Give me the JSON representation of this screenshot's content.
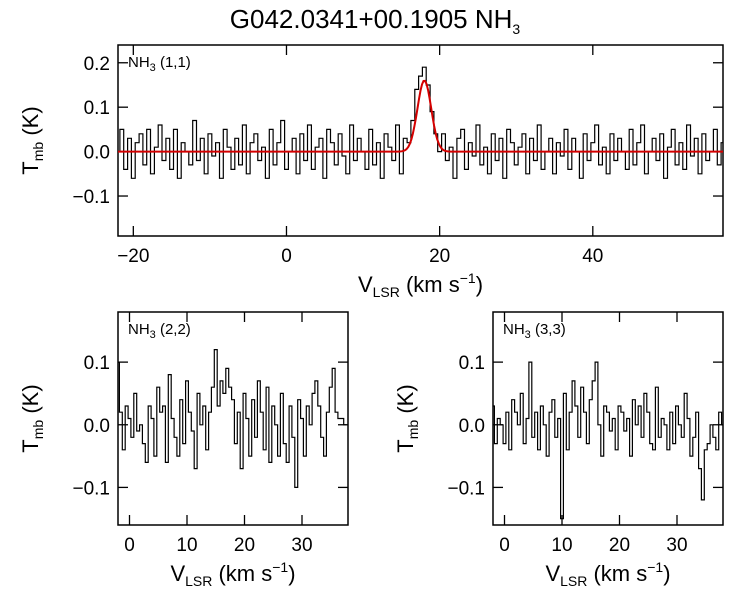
{
  "title": "G042.0341+00.1905 NH",
  "title_sub": "3",
  "chart_data": [
    {
      "type": "line",
      "panel": "top",
      "label_main": "NH",
      "label_sub": "3",
      "label_rest": " (1,1)",
      "xlabel_main": "V",
      "xlabel_sub": "LSR",
      "xlabel_rest": " (km s",
      "xlabel_sup": "−1",
      "xlabel_close": ")",
      "ylabel_main": "T",
      "ylabel_sub": "mb",
      "ylabel_rest": " (K)",
      "xlim": [
        -22,
        57
      ],
      "ylim": [
        -0.19,
        0.24
      ],
      "xticks": [
        -20,
        0,
        20,
        40
      ],
      "xtick_labels": [
        "−20",
        "0",
        "20",
        "40"
      ],
      "yticks": [
        0.2,
        0.1,
        0.0,
        -0.1
      ],
      "ytick_labels": [
        "0.2",
        "0.1",
        "0.0",
        "−0.1"
      ],
      "x_start": -22,
      "x_step": 0.5,
      "series": [
        {
          "kind": "spectrum",
          "values": [
            0.0,
            0.05,
            -0.04,
            0.03,
            -0.06,
            0.02,
            0.04,
            -0.03,
            0.05,
            -0.05,
            0.01,
            0.06,
            -0.02,
            0.03,
            -0.04,
            0.05,
            -0.06,
            0.02,
            0.0,
            -0.03,
            0.07,
            -0.02,
            0.03,
            -0.05,
            0.04,
            -0.01,
            0.02,
            -0.06,
            0.05,
            0.01,
            -0.04,
            0.03,
            -0.03,
            0.06,
            -0.05,
            0.02,
            0.04,
            -0.02,
            0.01,
            -0.06,
            0.05,
            -0.03,
            0.02,
            0.07,
            -0.04,
            0.0,
            0.03,
            -0.05,
            0.04,
            -0.02,
            0.06,
            -0.04,
            0.01,
            0.03,
            -0.06,
            0.05,
            0.02,
            -0.03,
            0.04,
            -0.01,
            -0.05,
            0.06,
            -0.02,
            0.03,
            0.0,
            -0.04,
            0.05,
            -0.03,
            0.02,
            -0.06,
            0.04,
            0.01,
            -0.02,
            0.06,
            -0.05,
            0.03,
            -0.01,
            0.02,
            -0.04,
            0.05,
            0.0,
            -0.03,
            0.07,
            -0.05,
            0.02,
            0.04,
            -0.02,
            0.01,
            -0.06,
            0.03,
            0.05,
            -0.04,
            0.02,
            -0.01,
            0.06,
            -0.03,
            0.01,
            -0.05,
            0.04,
            -0.02,
            0.03,
            -0.06,
            0.05,
            0.02,
            -0.03,
            0.01,
            0.04,
            -0.05,
            0.03,
            -0.02,
            0.06,
            -0.04,
            0.0,
            0.03,
            -0.05,
            0.02,
            -0.01,
            0.05,
            -0.04,
            0.03,
            0.0,
            -0.06,
            0.04,
            -0.02,
            0.02,
            0.06,
            -0.03,
            0.01,
            -0.05,
            0.04,
            -0.02,
            0.03,
            0.0,
            -0.04,
            0.05,
            -0.03,
            0.02,
            0.06,
            -0.05,
            0.0,
            0.03,
            -0.02,
            0.04,
            -0.06,
            0.01,
            0.05,
            -0.03,
            0.02,
            -0.04,
            0.06,
            -0.01,
            0.03,
            -0.05,
            0.04,
            -0.02,
            0.0,
            0.05,
            -0.03,
            0.02
          ],
          "peak": {
            "x": [
              16.0,
              16.5,
              17.0,
              17.5,
              18.0,
              18.5,
              19.0,
              19.5,
              20.0
            ],
            "y": [
              0.02,
              0.07,
              0.14,
              0.17,
              0.19,
              0.15,
              0.09,
              0.04,
              0.0
            ]
          }
        },
        {
          "kind": "fit",
          "color": "#d40000",
          "amplitude": 0.16,
          "center": 18.0,
          "sigma": 0.9
        }
      ]
    },
    {
      "type": "line",
      "panel": "bottom-left",
      "label_main": "NH",
      "label_sub": "3",
      "label_rest": " (2,2)",
      "xlabel_main": "V",
      "xlabel_sub": "LSR",
      "xlabel_rest": " (km s",
      "xlabel_sup": "−1",
      "xlabel_close": ")",
      "ylabel_main": "T",
      "ylabel_sub": "mb",
      "ylabel_rest": " (K)",
      "xlim": [
        -2,
        38
      ],
      "ylim": [
        -0.16,
        0.18
      ],
      "xticks": [
        0,
        10,
        20,
        30
      ],
      "xtick_labels": [
        "0",
        "10",
        "20",
        "30"
      ],
      "yticks": [
        0.1,
        0.0,
        -0.1
      ],
      "ytick_labels": [
        "0.1",
        "0.0",
        "−0.1"
      ],
      "x_start": -2,
      "x_step": 0.5,
      "series": [
        {
          "kind": "spectrum",
          "values": [
            0.1,
            0.02,
            -0.04,
            0.03,
            0.01,
            -0.02,
            0.05,
            -0.01,
            0.0,
            -0.03,
            -0.06,
            0.03,
            0.01,
            -0.05,
            0.06,
            0.02,
            0.03,
            -0.06,
            0.08,
            0.01,
            -0.02,
            -0.05,
            0.04,
            -0.03,
            0.07,
            0.02,
            -0.01,
            -0.07,
            0.05,
            0.0,
            0.03,
            -0.04,
            0.02,
            0.06,
            0.12,
            0.03,
            0.07,
            0.05,
            0.09,
            0.06,
            0.04,
            -0.03,
            0.02,
            -0.07,
            0.05,
            0.01,
            -0.05,
            0.04,
            -0.02,
            0.07,
            0.02,
            -0.04,
            0.06,
            -0.06,
            0.03,
            0.0,
            -0.05,
            0.05,
            -0.03,
            -0.06,
            0.03,
            -0.02,
            -0.1,
            0.04,
            0.01,
            -0.05,
            0.03,
            0.0,
            0.05,
            0.07,
            0.03,
            -0.02,
            -0.05,
            0.02,
            0.06,
            0.09,
            0.02,
            0.01,
            0.01,
            0.0
          ]
        }
      ]
    },
    {
      "type": "line",
      "panel": "bottom-right",
      "label_main": "NH",
      "label_sub": "3",
      "label_rest": " (3,3)",
      "xlabel_main": "V",
      "xlabel_sub": "LSR",
      "xlabel_rest": " (km s",
      "xlabel_sup": "−1",
      "xlabel_close": ")",
      "ylabel_main": "T",
      "ylabel_sub": "mb",
      "ylabel_rest": " (K)",
      "xlim": [
        -2,
        38
      ],
      "ylim": [
        -0.16,
        0.18
      ],
      "xticks": [
        0,
        10,
        20,
        30
      ],
      "xtick_labels": [
        "0",
        "10",
        "20",
        "30"
      ],
      "yticks": [
        0.1,
        0.0,
        -0.1
      ],
      "ytick_labels": [
        "0.1",
        "0.0",
        "−0.1"
      ],
      "x_start": -2,
      "x_step": 0.5,
      "series": [
        {
          "kind": "spectrum",
          "values": [
            0.03,
            -0.03,
            0.01,
            0.0,
            -0.03,
            0.02,
            -0.04,
            0.04,
            0.02,
            0.0,
            0.05,
            -0.03,
            0.01,
            0.1,
            -0.02,
            0.02,
            -0.04,
            0.03,
            0.0,
            -0.05,
            0.02,
            0.04,
            -0.02,
            0.01,
            -0.15,
            0.05,
            -0.04,
            0.02,
            0.07,
            0.03,
            -0.02,
            0.06,
            0.02,
            -0.03,
            0.04,
            0.07,
            0.1,
            0.0,
            -0.05,
            0.03,
            0.02,
            -0.01,
            0.01,
            -0.04,
            0.03,
            0.02,
            -0.01,
            0.01,
            -0.05,
            0.04,
            0.0,
            0.03,
            -0.02,
            0.05,
            0.02,
            -0.03,
            -0.04,
            0.06,
            -0.02,
            0.01,
            0.0,
            -0.04,
            0.02,
            -0.03,
            0.03,
            0.0,
            -0.02,
            0.05,
            0.01,
            -0.05,
            -0.02,
            0.02,
            -0.07,
            -0.12,
            -0.04,
            -0.03,
            0.0,
            -0.02,
            -0.04,
            0.02,
            0.0
          ]
        }
      ]
    }
  ]
}
